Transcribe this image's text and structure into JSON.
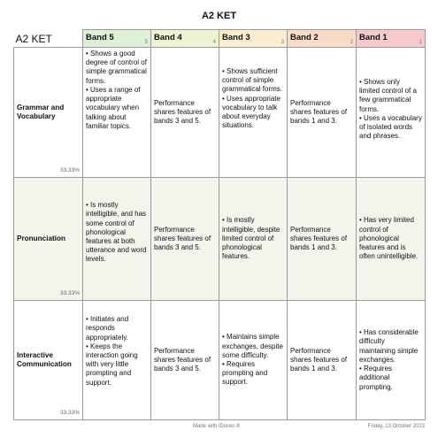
{
  "page_title": "A2 KET",
  "corner_label": "A2 KET",
  "colors": {
    "band5": "#dff0d8",
    "band4": "#eef3d2",
    "band3": "#fbeed0",
    "band2": "#f8dcc8",
    "band1": "#f6c9cd",
    "row_shade": "#f4f4ec",
    "border": "#9a9a9a"
  },
  "bands": [
    {
      "label": "Band 5",
      "num": "5"
    },
    {
      "label": "Band 4",
      "num": "4"
    },
    {
      "label": "Band 3",
      "num": "3"
    },
    {
      "label": "Band 2",
      "num": "2"
    },
    {
      "label": "Band 1",
      "num": "1"
    }
  ],
  "rows": [
    {
      "criterion": "Grammar and Vocabulary",
      "weight": "33.33%",
      "b5": [
        "Shows a good degree of control of simple grammatical forms.",
        "Uses a range of appropriate vocabulary when talking about familiar topics."
      ],
      "b4": "Performance shares features of bands 3 and 5.",
      "b3": [
        "Shows sufficient control of simple grammatical forms.",
        "Uses appropriate vocabulary to talk about everyday situations."
      ],
      "b2": "Performance shares features of bands 1 and 3.",
      "b1": [
        "Shows only limited control of a few grammatical forms.",
        "Uses a vocabulary of isolated words and phrases."
      ]
    },
    {
      "criterion": "Pronunciation",
      "weight": "33.33%",
      "b5": [
        "Is mostly intelligible, and has some control of phonological features at both utterance and word levels."
      ],
      "b4": "Performance shares features of bands 3 and 5.",
      "b3": [
        "Is mostly intelligible, despite limited control of phonological features."
      ],
      "b2": "Performance shares features of bands 1 and 3.",
      "b1": [
        "Has very limited control of phonological features and is often unintelligible."
      ]
    },
    {
      "criterion": "Interactive Communication",
      "weight": "33.33%",
      "b5": [
        "Initiates and responds appropriately.",
        "Keeps the interaction going with very little prompting and support."
      ],
      "b4": "Performance shares features of bands 3 and 5.",
      "b3": [
        "Maintains simple exchanges, despite some difficulty.",
        "Requires prompting and support."
      ],
      "b2": "Performance shares features of bands 1 and 3.",
      "b1": [
        "Has considerable difficulty maintaining simple exchanges.",
        "Requires additional prompting."
      ]
    }
  ],
  "footer": {
    "made_with": "Made with iDoceo 8",
    "date": "Friday, 13 October 2023"
  }
}
